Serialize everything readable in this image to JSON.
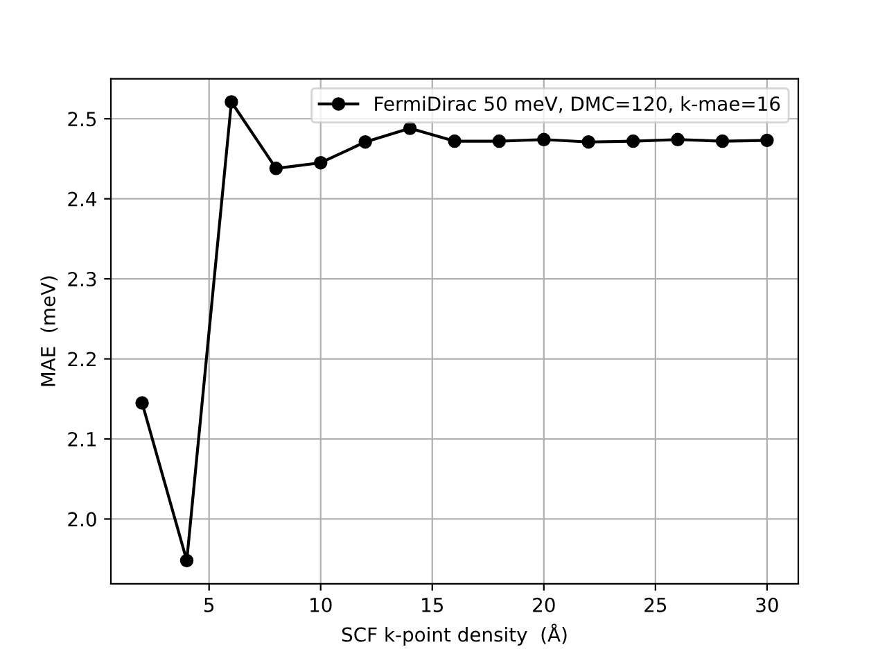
{
  "chart_data": {
    "type": "line",
    "xlabel": "SCF k-point density  (Å)",
    "ylabel": "MAE  (meV)",
    "x": [
      2,
      4,
      6,
      8,
      10,
      12,
      14,
      16,
      18,
      20,
      22,
      24,
      26,
      28,
      30
    ],
    "series": [
      {
        "name": "FermiDirac 50 meV, DMC=120, k-mae=16",
        "color": "#000000",
        "values": [
          2.145,
          1.948,
          2.521,
          2.438,
          2.445,
          2.471,
          2.488,
          2.472,
          2.472,
          2.474,
          2.471,
          2.472,
          2.474,
          2.472,
          2.473
        ]
      }
    ],
    "xlim": [
      0.6,
      31.4
    ],
    "ylim": [
      1.919,
      2.55
    ],
    "xticks": [
      5,
      10,
      15,
      20,
      25,
      30
    ],
    "yticks": [
      {
        "value": 2.0,
        "label": "2.0"
      },
      {
        "value": 2.1,
        "label": "2.1"
      },
      {
        "value": 2.2,
        "label": "2.2"
      },
      {
        "value": 2.3,
        "label": "2.3"
      },
      {
        "value": 2.4,
        "label": "2.4"
      },
      {
        "value": 2.5,
        "label": "2.5"
      }
    ],
    "grid": true,
    "legend": "top right",
    "marker": "circle",
    "line_style": "solid"
  }
}
